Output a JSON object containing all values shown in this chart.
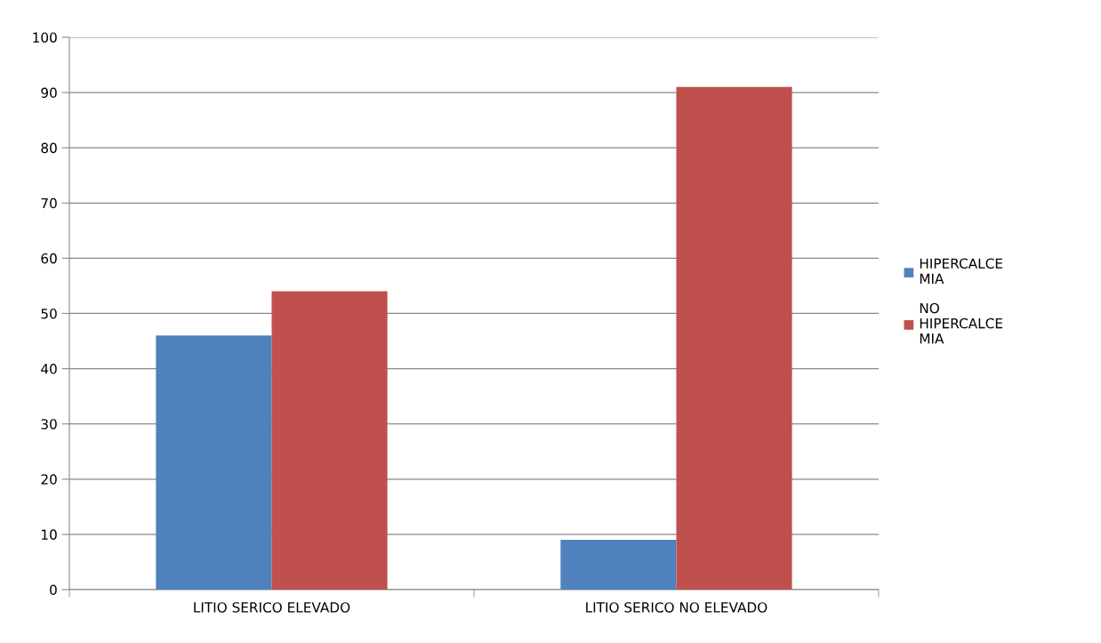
{
  "chart_data": {
    "type": "bar",
    "categories": [
      "LITIO SERICO ELEVADO",
      "LITIO SERICO NO ELEVADO"
    ],
    "series": [
      {
        "name": "HIPERCALCE\nMIA",
        "color": "#4f81bd",
        "values": [
          46,
          9
        ]
      },
      {
        "name": "NO\nHIPERCALCE\nMIA",
        "color": "#c0504d",
        "values": [
          54,
          91
        ]
      }
    ],
    "ylim": [
      0,
      100
    ],
    "yticks": [
      0,
      10,
      20,
      30,
      40,
      50,
      60,
      70,
      80,
      90,
      100
    ],
    "grid": "y",
    "legend": "right"
  }
}
